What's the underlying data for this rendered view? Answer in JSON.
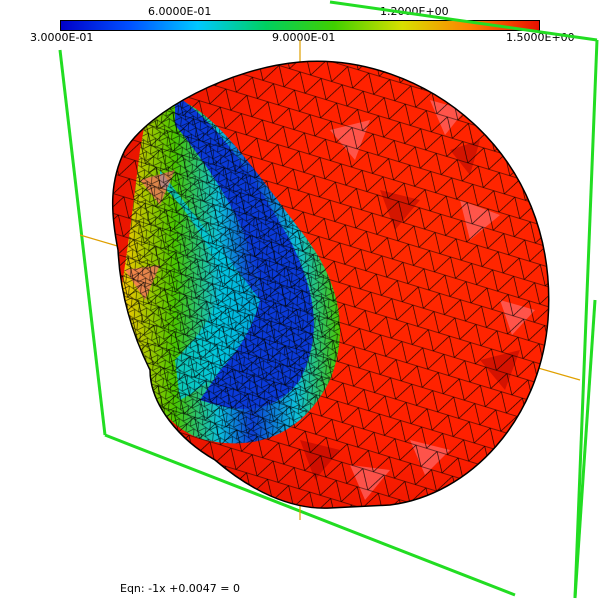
{
  "colorbar": {
    "top_labels": [
      "6.0000E-01",
      "1.2000E+00"
    ],
    "bottom_labels": [
      "3.0000E-01",
      "9.0000E-01",
      "1.5000E+00"
    ],
    "min": 0.3,
    "max": 1.5,
    "stops": [
      "#0000c8",
      "#0050ff",
      "#00c8ff",
      "#00d060",
      "#40d000",
      "#d8e000",
      "#ff8000",
      "#e81000"
    ]
  },
  "equation": {
    "label": "Eqn:",
    "text": "-1x +0.0047 = 0"
  },
  "colors": {
    "bounding_box": "#22dd22",
    "axes": "#e0a000",
    "mesh_edge": "#000000",
    "high_field": "#ff1a00"
  }
}
